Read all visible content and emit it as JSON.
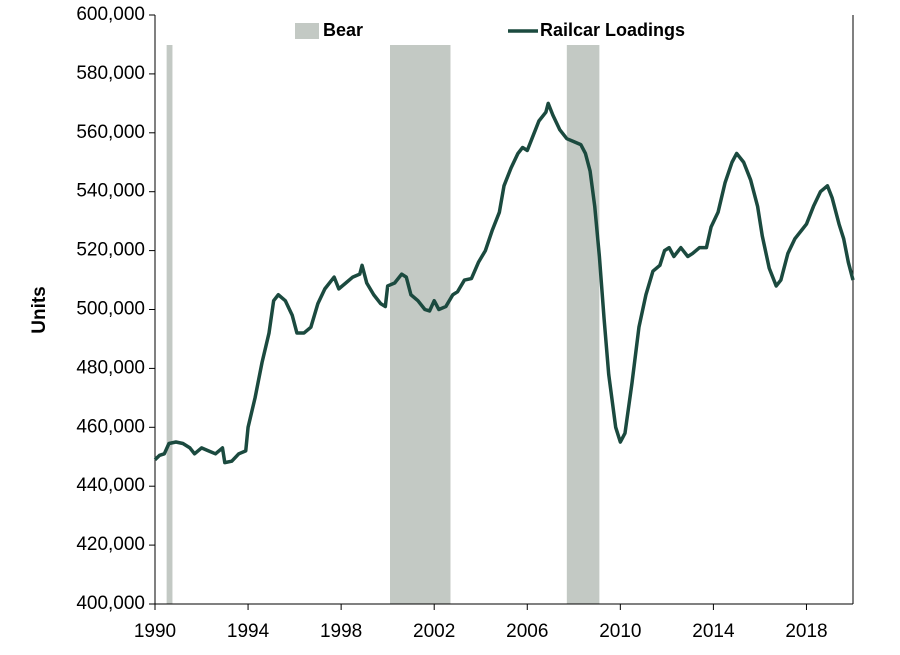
{
  "chart_data": {
    "type": "line",
    "y_label": "Units",
    "legend": "top",
    "xlim": [
      1990,
      2020
    ],
    "xticks": [
      1990,
      1994,
      1998,
      2002,
      2006,
      2010,
      2014,
      2018
    ],
    "ylim": [
      400000,
      600000
    ],
    "yticks": [
      {
        "value": 400000,
        "label": "400,000"
      },
      {
        "value": 420000,
        "label": "420,000"
      },
      {
        "value": 440000,
        "label": "440,000"
      },
      {
        "value": 460000,
        "label": "460,000"
      },
      {
        "value": 480000,
        "label": "480,000"
      },
      {
        "value": 500000,
        "label": "500,000"
      },
      {
        "value": 520000,
        "label": "520,000"
      },
      {
        "value": 540000,
        "label": "540,000"
      },
      {
        "value": 560000,
        "label": "560,000"
      },
      {
        "value": 580000,
        "label": "580,000"
      },
      {
        "value": 600000,
        "label": "600,000"
      }
    ],
    "bear": {
      "name": "Bear",
      "color": "#c3c9c4",
      "periods": [
        [
          1990.5,
          1990.75
        ],
        [
          2000.1,
          2002.7
        ],
        [
          2007.7,
          2009.1
        ]
      ]
    },
    "x": [
      1990.0,
      1990.2,
      1990.4,
      1990.6,
      1990.9,
      1991.2,
      1991.5,
      1991.7,
      1992.0,
      1992.3,
      1992.6,
      1992.9,
      1993.0,
      1993.3,
      1993.6,
      1993.9,
      1994.0,
      1994.3,
      1994.6,
      1994.9,
      1995.1,
      1995.3,
      1995.6,
      1995.9,
      1996.1,
      1996.4,
      1996.7,
      1997.0,
      1997.3,
      1997.7,
      1997.9,
      1998.2,
      1998.5,
      1998.8,
      1998.9,
      1999.1,
      1999.4,
      1999.7,
      1999.9,
      2000.0,
      2000.3,
      2000.6,
      2000.8,
      2001.0,
      2001.3,
      2001.6,
      2001.8,
      2002.0,
      2002.2,
      2002.5,
      2002.8,
      2003.0,
      2003.3,
      2003.6,
      2003.9,
      2004.2,
      2004.5,
      2004.8,
      2005.0,
      2005.3,
      2005.6,
      2005.8,
      2006.0,
      2006.2,
      2006.5,
      2006.8,
      2006.9,
      2007.1,
      2007.4,
      2007.7,
      2008.0,
      2008.3,
      2008.5,
      2008.7,
      2008.9,
      2009.1,
      2009.3,
      2009.5,
      2009.8,
      2010.0,
      2010.2,
      2010.5,
      2010.8,
      2011.1,
      2011.4,
      2011.7,
      2011.9,
      2012.1,
      2012.3,
      2012.6,
      2012.9,
      2013.1,
      2013.4,
      2013.7,
      2013.9,
      2014.2,
      2014.5,
      2014.8,
      2015.0,
      2015.3,
      2015.6,
      2015.9,
      2016.1,
      2016.4,
      2016.7,
      2016.9,
      2017.2,
      2017.5,
      2017.8,
      2018.0,
      2018.3,
      2018.6,
      2018.9,
      2019.1,
      2019.4,
      2019.6,
      2019.8,
      2020.0
    ],
    "series": [
      {
        "name": "Railcar Loadings",
        "color": "#1b4a3f",
        "values": [
          449000,
          450500,
          451000,
          454500,
          455000,
          454500,
          453000,
          451000,
          453000,
          452000,
          451000,
          453000,
          448000,
          448500,
          451000,
          452000,
          460000,
          470000,
          482000,
          492000,
          503000,
          505000,
          503000,
          498000,
          492000,
          492000,
          494000,
          502000,
          507000,
          511000,
          507000,
          509000,
          511000,
          512000,
          515000,
          509000,
          505000,
          502000,
          501000,
          508000,
          509000,
          512000,
          511000,
          505000,
          503000,
          500000,
          499500,
          503000,
          500000,
          501000,
          505000,
          506000,
          510000,
          510500,
          516000,
          520000,
          527000,
          533000,
          542000,
          548000,
          553000,
          555000,
          554000,
          558000,
          564000,
          567000,
          570000,
          566000,
          561000,
          558000,
          557000,
          556000,
          553000,
          547000,
          535000,
          518000,
          497000,
          478000,
          460000,
          455000,
          458000,
          475000,
          494000,
          505000,
          513000,
          515000,
          520000,
          521000,
          518000,
          521000,
          518000,
          519000,
          521000,
          521000,
          528000,
          533000,
          543000,
          550000,
          553000,
          550000,
          544000,
          535000,
          525000,
          514000,
          508000,
          510000,
          519000,
          524000,
          527000,
          529000,
          535000,
          540000,
          542000,
          538000,
          529000,
          524000,
          516000,
          510000
        ]
      }
    ]
  }
}
